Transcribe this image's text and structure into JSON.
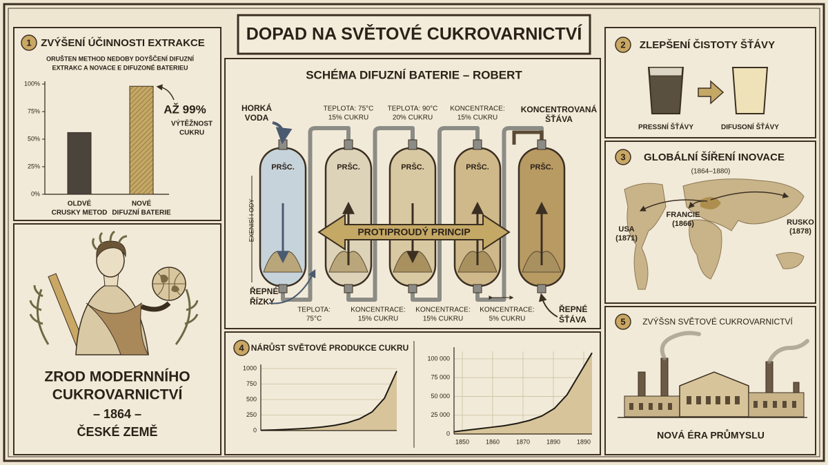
{
  "header": {
    "title": "DOPAD NA SVĚTOVÉ CUKROVARNICTVÍ"
  },
  "panel1": {
    "number": "1",
    "title": "ZVÝŠENÍ ÚČINNOSTI EXTRAKCE",
    "subtitle": [
      "ORUŠTEN METHOD NEDOBY DOYŠČENÍ DIFUZNÍ",
      "EXTRAKC A NOVACE E DIFUZONÉ BATERIEU"
    ],
    "chart": {
      "type": "bar",
      "categories": [
        [
          "OLDVÉ",
          "CRUSKY METOD"
        ],
        [
          "NOVÉ",
          "DIFUZNÍ BATERIE"
        ]
      ],
      "values": [
        56,
        98
      ],
      "colors": [
        "#4a443d",
        "#b89b5c"
      ],
      "ylim": [
        0,
        100
      ],
      "yticks": [
        {
          "value": 0,
          "label": "0%"
        },
        {
          "value": 25,
          "label": "25%"
        },
        {
          "value": 50,
          "label": "50%"
        },
        {
          "value": 75,
          "label": "75%"
        },
        {
          "value": 100,
          "label": "100%"
        }
      ]
    },
    "annotation": [
      "AŽ 99%",
      "VÝTĚŽNOST",
      "CUKRU"
    ]
  },
  "hero": {
    "lines": [
      "ZROD MODERNNÍHO",
      "CUKROVARNICTVÍ",
      "– 1864 –",
      "ČESKÉ ZEMĚ"
    ]
  },
  "diagram": {
    "title": "SCHÉMA DIFUZNÍ BATERIE – ROBERT",
    "vessels": [
      "PRŠC.",
      "PRŠC.",
      "PRŠC.",
      "PRŠC.",
      "PRŠC."
    ],
    "top_labels": [
      [
        "HORKÁ",
        "VODA"
      ],
      [
        "TEPLOTA: 75°C",
        "15% CUKRU"
      ],
      [
        "TEPLOTA: 90°C",
        "20% CUKRU"
      ],
      [
        "KONCENTRACE:",
        "15% CUKRU"
      ],
      [
        "KONCENTROVANÁ",
        "ŠŤÁVA"
      ]
    ],
    "bottom_labels": [
      [
        "TEPLOTA:",
        "75°C"
      ],
      [
        "KONCENTRACE:",
        "15% CUKRU"
      ],
      [
        "KONCENTRACE:",
        "15% CUKRU"
      ],
      [
        "KONCENTRACE:",
        "5% CUKRU"
      ]
    ],
    "inlet": [
      "ŘEPNÉ",
      "ŘÍZKY"
    ],
    "outlet": [
      "ŘEPNÉ",
      "ŠŤÁVA"
    ],
    "side_label": "EXENISÍ I ODY",
    "arrow": "PROTIPROUDÝ PRINCIP"
  },
  "panel2": {
    "number": "2",
    "title": "ZLEPŠENÍ ČISTOTY ŠŤÁVY",
    "labels": [
      "PRESSNÍ ŠŤÁVY",
      "DIFUSONÍ ŠŤÁVY"
    ]
  },
  "panel3": {
    "number": "3",
    "title": "GLOBÁLNÍ ŠÍŘENÍ INOVACE",
    "period": "(1864–1880)",
    "places": [
      [
        "FRANCIE",
        "(1866)"
      ],
      [
        "USA",
        "(1871)"
      ],
      [
        "RUSKO",
        "(1878)"
      ]
    ]
  },
  "panel4": {
    "number": "4",
    "title": "NÁRŮST SVĚTOVÉ PRODUKCE CUKRU",
    "charts": [
      {
        "type": "area",
        "ylim": [
          0,
          1000
        ],
        "yticks": [
          0,
          250,
          500,
          750,
          1000
        ],
        "values": [
          5,
          10,
          18,
          28,
          40,
          58,
          85,
          125,
          190,
          300,
          520,
          960
        ]
      },
      {
        "type": "area",
        "ylim": [
          0,
          110000
        ],
        "yticks": [
          {
            "value": 0,
            "label": "0"
          },
          {
            "value": 25000,
            "label": "25 000"
          },
          {
            "value": 50000,
            "label": "50 000"
          },
          {
            "value": 75000,
            "label": "75 000"
          },
          {
            "value": 100000,
            "label": "100 000"
          }
        ],
        "xticks": [
          "1850",
          "1860",
          "1870",
          "1890",
          "1890"
        ],
        "values": [
          3000,
          5000,
          7000,
          9000,
          11000,
          14000,
          18000,
          24000,
          34000,
          52000,
          80000,
          108000
        ]
      }
    ]
  },
  "panel5": {
    "number": "5",
    "title": "ZVÝŠSN SVĚTOVÉ CUKROVARNICTVÍ",
    "caption": "NOVÁ ÉRA PRŮMYSLU"
  }
}
